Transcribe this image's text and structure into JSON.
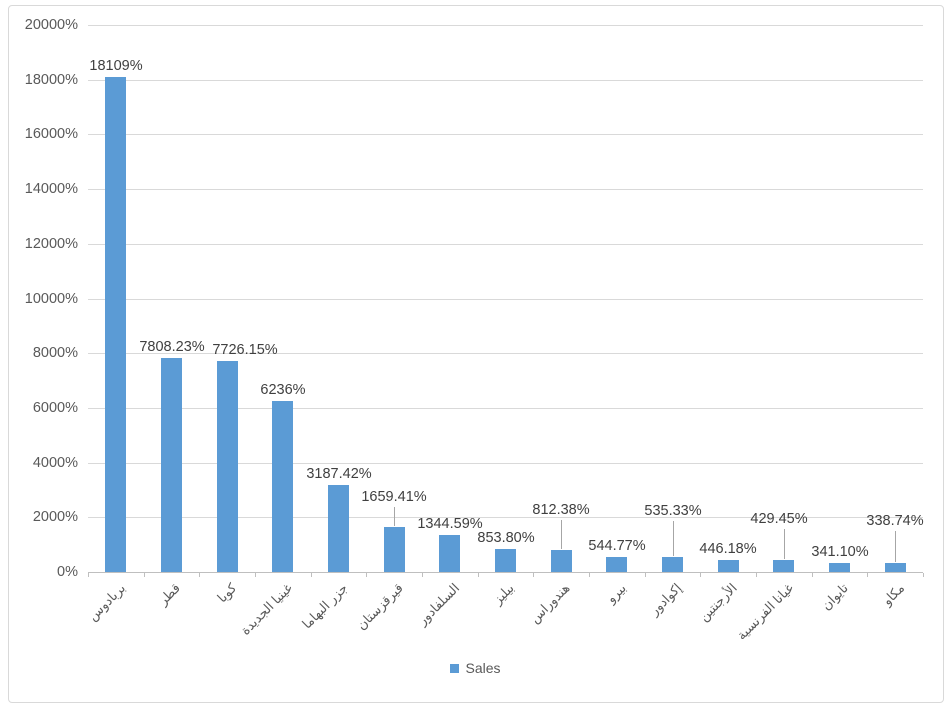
{
  "chart_data": {
    "type": "bar",
    "title": "",
    "categories": [
      "بربادوس",
      "قطر",
      "كوبا",
      "غينيا الجديدة",
      "جزر البهاما",
      "قيرقزستان",
      "السلفادور",
      "بيليز",
      "هندوراس",
      "بيرو",
      "إكوادور",
      "الأرجنتين",
      "غيانا الفرنسية",
      "تايوان",
      "مكاو"
    ],
    "series": [
      {
        "name": "Sales",
        "color": "#5B9BD5",
        "values": [
          18109,
          7808.23,
          7726.15,
          6236,
          3187.42,
          1659.41,
          1344.59,
          853.8,
          812.38,
          544.77,
          535.33,
          446.18,
          429.45,
          341.1,
          338.74
        ],
        "data_labels": [
          "18109%",
          "7808.23%",
          "7726.15%",
          "6236%",
          "3187.42%",
          "1659.41%",
          "1344.59%",
          "853.80%",
          "812.38%",
          "544.77%",
          "535.33%",
          "446.18%",
          "429.45%",
          "341.10%",
          "338.74%"
        ]
      }
    ],
    "y_axis": {
      "min": 0,
      "max": 20000,
      "step": 2000,
      "format": "percent",
      "tick_labels": [
        "0%",
        "2000%",
        "4000%",
        "6000%",
        "8000%",
        "10000%",
        "12000%",
        "14000%",
        "16000%",
        "18000%",
        "20000%"
      ]
    },
    "x_axis": {
      "label_rotation_deg": 45,
      "text_direction": "rtl"
    },
    "legend": {
      "position": "bottom",
      "entries": [
        {
          "label": "Sales",
          "color": "#5B9BD5"
        }
      ]
    },
    "gridlines": true,
    "colors": {
      "bar": "#5B9BD5",
      "gridline": "#D9D9D9",
      "axis_line": "#BFBFBF",
      "axis_tick_label": "#595959",
      "data_label": "#404040",
      "leader_line": "#A6A6A6",
      "chart_border": "#D9D9D9"
    },
    "label_layout": [
      {
        "dx": 0,
        "callout": false,
        "label_bottom_y": null
      },
      {
        "dx": 0,
        "callout": false,
        "label_bottom_y": null
      },
      {
        "dx": 18,
        "callout": false,
        "label_bottom_y": null
      },
      {
        "dx": 0,
        "callout": false,
        "label_bottom_y": null
      },
      {
        "dx": 0,
        "callout": false,
        "label_bottom_y": null
      },
      {
        "dx": 0,
        "callout": true,
        "label_bottom_y": 505
      },
      {
        "dx": 0,
        "callout": false,
        "label_bottom_y": null
      },
      {
        "dx": 0,
        "callout": false,
        "label_bottom_y": null
      },
      {
        "dx": 0,
        "callout": true,
        "label_bottom_y": 518
      },
      {
        "dx": 0,
        "callout": false,
        "label_bottom_y": null
      },
      {
        "dx": 0,
        "callout": true,
        "label_bottom_y": 519
      },
      {
        "dx": 0,
        "callout": false,
        "label_bottom_y": null
      },
      {
        "dx": -5,
        "callout": true,
        "label_bottom_y": 527
      },
      {
        "dx": 0,
        "callout": false,
        "label_bottom_y": null
      },
      {
        "dx": 0,
        "callout": true,
        "label_bottom_y": 529
      }
    ]
  }
}
